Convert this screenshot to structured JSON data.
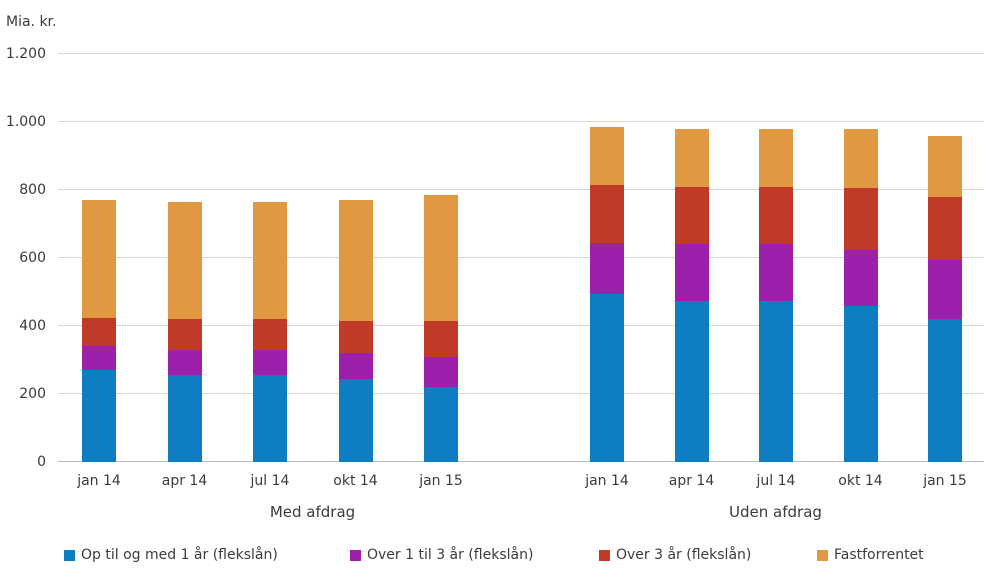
{
  "chart_data": {
    "type": "bar",
    "stacked": true,
    "ylabel": "Mia. kr.",
    "ylim": [
      0,
      1200
    ],
    "grid": "horizontal",
    "legend_position": "bottom",
    "yticks": [
      {
        "value": 0,
        "label": "0"
      },
      {
        "value": 200,
        "label": "200"
      },
      {
        "value": 400,
        "label": "400"
      },
      {
        "value": 600,
        "label": "600"
      },
      {
        "value": 800,
        "label": "800"
      },
      {
        "value": 1000,
        "label": "1.000"
      },
      {
        "value": 1200,
        "label": "1.200"
      }
    ],
    "series_names": [
      "Op til og med 1 år (flekslån)",
      "Over 1 til 3 år (flekslån)",
      "Over 3 år (flekslån)",
      "Fastforrentet"
    ],
    "series_colors": [
      "#0E7DC2",
      "#9E1FA9",
      "#C13A28",
      "#E09940"
    ],
    "groups": [
      {
        "label": "Med afdrag",
        "categories": [
          "jan 14",
          "apr 14",
          "jul 14",
          "okt 14",
          "jan 15"
        ],
        "series": [
          {
            "name": "Op til og med 1 år (flekslån)",
            "values": [
              270,
              255,
              255,
              245,
              220
            ]
          },
          {
            "name": "Over 1 til 3 år (flekslån)",
            "values": [
              70,
              75,
              75,
              75,
              90
            ]
          },
          {
            "name": "Over 3 år (flekslån)",
            "values": [
              85,
              90,
              90,
              95,
              105
            ]
          },
          {
            "name": "Fastforrentet",
            "values": [
              345,
              345,
              345,
              355,
              370
            ]
          }
        ]
      },
      {
        "label": "Uden afdrag",
        "categories": [
          "jan 14",
          "apr 14",
          "jul 14",
          "okt 14",
          "jan 15"
        ],
        "series": [
          {
            "name": "Op til og med 1 år (flekslån)",
            "values": [
              495,
              475,
              475,
              460,
              420
            ]
          },
          {
            "name": "Over 1 til 3 år (flekslån)",
            "values": [
              150,
              165,
              165,
              165,
              175
            ]
          },
          {
            "name": "Over 3 år (flekslån)",
            "values": [
              170,
              170,
              170,
              180,
              185
            ]
          },
          {
            "name": "Fastforrentet",
            "values": [
              170,
              170,
              170,
              175,
              180
            ]
          }
        ]
      }
    ],
    "legend": [
      {
        "label": "Op til og med 1 år (flekslån)",
        "color": "#0E7DC2"
      },
      {
        "label": "Over 1 til 3 år (flekslån)",
        "color": "#9E1FA9"
      },
      {
        "label": "Over 3 år (flekslån)",
        "color": "#C13A28"
      },
      {
        "label": "Fastforrentet",
        "color": "#E09940"
      }
    ]
  },
  "layout_text": {
    "med_afdrag_label": "Med afdrag",
    "uden_afdrag_label": "Uden afdrag"
  }
}
